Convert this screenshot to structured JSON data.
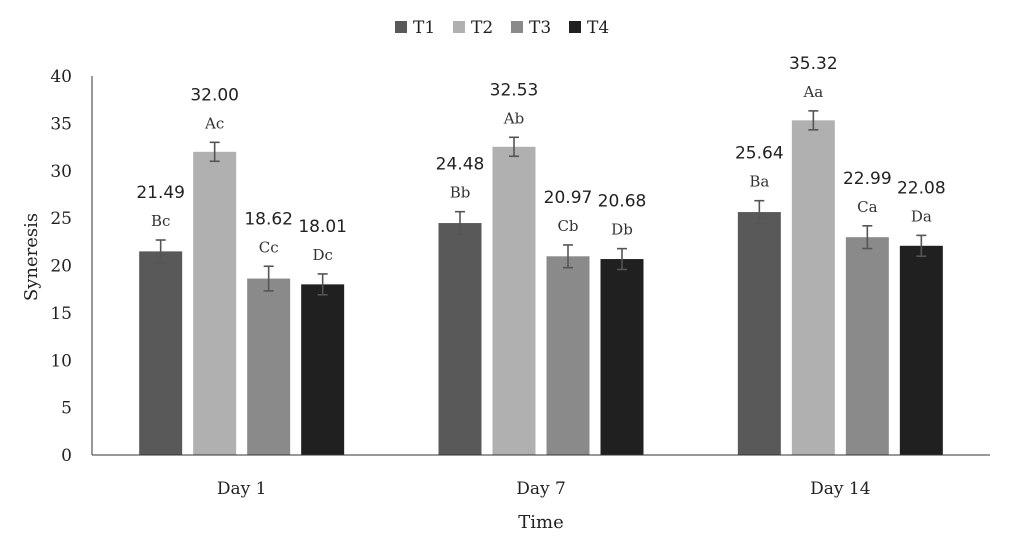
{
  "chart_data": {
    "type": "bar",
    "title": "",
    "xlabel": "Time",
    "ylabel": "Syneresis",
    "ylim": [
      0,
      40
    ],
    "yticks": [
      "0",
      "5",
      "10",
      "15",
      "20",
      "25",
      "30",
      "35",
      "40"
    ],
    "categories": [
      "Day 1",
      "Day 7",
      "Day 14"
    ],
    "legend_position": "top",
    "series": [
      {
        "name": "T1",
        "color": "#595959",
        "values": [
          21.49,
          24.48,
          25.64
        ],
        "labels": [
          "21.49",
          "24.48",
          "25.64"
        ],
        "letters": [
          "Bc",
          "Bb",
          "Ba"
        ],
        "error": [
          1.2,
          1.2,
          1.2
        ]
      },
      {
        "name": "T2",
        "color": "#b0b0b0",
        "values": [
          32.0,
          32.53,
          35.32
        ],
        "labels": [
          "32.00",
          "32.53",
          "35.32"
        ],
        "letters": [
          "Ac",
          "Ab",
          "Aa"
        ],
        "error": [
          1.0,
          1.0,
          1.0
        ]
      },
      {
        "name": "T3",
        "color": "#8a8a8a",
        "values": [
          18.62,
          20.97,
          22.99
        ],
        "labels": [
          "18.62",
          "20.97",
          "22.99"
        ],
        "letters": [
          "Cc",
          "Cb",
          "Ca"
        ],
        "error": [
          1.3,
          1.2,
          1.2
        ]
      },
      {
        "name": "T4",
        "color": "#202020",
        "values": [
          18.01,
          20.68,
          22.08
        ],
        "labels": [
          "18.01",
          "20.68",
          "22.08"
        ],
        "letters": [
          "Dc",
          "Db",
          "Da"
        ],
        "error": [
          1.1,
          1.1,
          1.1
        ]
      }
    ]
  }
}
